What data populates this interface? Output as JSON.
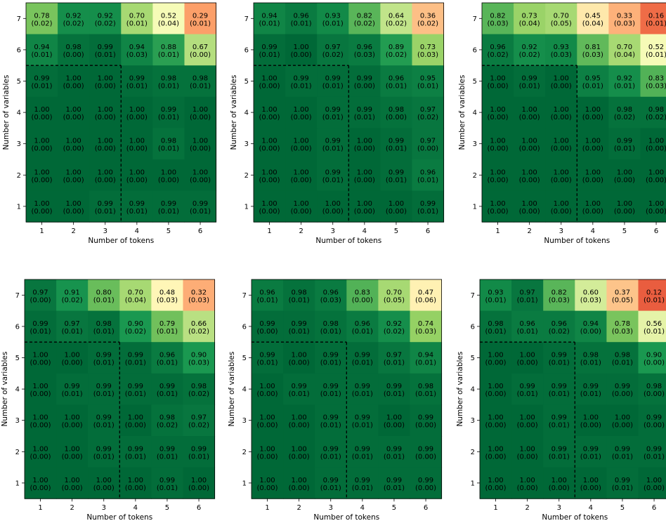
{
  "colors": {
    "low": "#d73027",
    "mid_low": "#fc8d59",
    "mid": "#ffffbf",
    "mid_high": "#91cf60",
    "high": "#1a9850",
    "max": "#006837",
    "divider": "#000000"
  },
  "colormap": "RdYlGn",
  "chart_data": [
    {
      "type": "heatmap",
      "xlabel": "Number of tokens",
      "ylabel": "Number of variables",
      "x_ticks": [
        "1",
        "2",
        "3",
        "4",
        "5",
        "6"
      ],
      "y_ticks": [
        "7",
        "6",
        "5",
        "4",
        "3",
        "2",
        "1"
      ],
      "values": [
        [
          "0.78",
          "0.92",
          "0.92",
          "0.70",
          "0.52",
          "0.29"
        ],
        [
          "0.94",
          "0.98",
          "0.99",
          "0.94",
          "0.88",
          "0.67"
        ],
        [
          "0.99",
          "1.00",
          "1.00",
          "0.99",
          "0.98",
          "0.98"
        ],
        [
          "1.00",
          "1.00",
          "1.00",
          "1.00",
          "0.99",
          "1.00"
        ],
        [
          "1.00",
          "1.00",
          "1.00",
          "1.00",
          "0.98",
          "1.00"
        ],
        [
          "1.00",
          "1.00",
          "1.00",
          "1.00",
          "1.00",
          "1.00"
        ],
        [
          "1.00",
          "1.00",
          "0.99",
          "0.99",
          "0.99",
          "0.99"
        ]
      ],
      "errors": [
        [
          "(0.02)",
          "(0.02)",
          "(0.02)",
          "(0.01)",
          "(0.04)",
          "(0.01)"
        ],
        [
          "(0.01)",
          "(0.00)",
          "(0.01)",
          "(0.03)",
          "(0.01)",
          "(0.00)"
        ],
        [
          "(0.01)",
          "(0.00)",
          "(0.00)",
          "(0.01)",
          "(0.01)",
          "(0.01)"
        ],
        [
          "(0.00)",
          "(0.00)",
          "(0.00)",
          "(0.00)",
          "(0.01)",
          "(0.00)"
        ],
        [
          "(0.00)",
          "(0.00)",
          "(0.00)",
          "(0.00)",
          "(0.01)",
          "(0.00)"
        ],
        [
          "(0.00)",
          "(0.00)",
          "(0.00)",
          "(0.00)",
          "(0.00)",
          "(0.00)"
        ],
        [
          "(0.00)",
          "(0.00)",
          "(0.01)",
          "(0.01)",
          "(0.01)",
          "(0.01)"
        ]
      ]
    },
    {
      "type": "heatmap",
      "xlabel": "Number of tokens",
      "ylabel": "Number of variables",
      "x_ticks": [
        "1",
        "2",
        "3",
        "4",
        "5",
        "6"
      ],
      "y_ticks": [
        "7",
        "6",
        "5",
        "4",
        "3",
        "2",
        "1"
      ],
      "values": [
        [
          "0.94",
          "0.96",
          "0.93",
          "0.82",
          "0.64",
          "0.36"
        ],
        [
          "0.99",
          "1.00",
          "0.97",
          "0.96",
          "0.89",
          "0.73"
        ],
        [
          "1.00",
          "0.99",
          "0.99",
          "0.99",
          "0.96",
          "0.95"
        ],
        [
          "1.00",
          "1.00",
          "0.99",
          "0.99",
          "0.98",
          "0.97"
        ],
        [
          "1.00",
          "1.00",
          "0.99",
          "1.00",
          "0.99",
          "0.97"
        ],
        [
          "1.00",
          "1.00",
          "0.99",
          "1.00",
          "0.99",
          "0.96"
        ],
        [
          "1.00",
          "1.00",
          "1.00",
          "1.00",
          "1.00",
          "0.99"
        ]
      ],
      "errors": [
        [
          "(0.01)",
          "(0.01)",
          "(0.01)",
          "(0.02)",
          "(0.02)",
          "(0.02)"
        ],
        [
          "(0.01)",
          "(0.00)",
          "(0.02)",
          "(0.03)",
          "(0.02)",
          "(0.03)"
        ],
        [
          "(0.00)",
          "(0.01)",
          "(0.01)",
          "(0.00)",
          "(0.01)",
          "(0.01)"
        ],
        [
          "(0.00)",
          "(0.00)",
          "(0.01)",
          "(0.01)",
          "(0.00)",
          "(0.02)"
        ],
        [
          "(0.00)",
          "(0.00)",
          "(0.01)",
          "(0.00)",
          "(0.01)",
          "(0.00)"
        ],
        [
          "(0.00)",
          "(0.00)",
          "(0.01)",
          "(0.00)",
          "(0.01)",
          "(0.01)"
        ],
        [
          "(0.00)",
          "(0.00)",
          "(0.00)",
          "(0.00)",
          "(0.00)",
          "(0.01)"
        ]
      ]
    },
    {
      "type": "heatmap",
      "xlabel": "Number of tokens",
      "ylabel": "Number of variables",
      "x_ticks": [
        "1",
        "2",
        "3",
        "4",
        "5",
        "6"
      ],
      "y_ticks": [
        "7",
        "6",
        "5",
        "4",
        "3",
        "2",
        "1"
      ],
      "values": [
        [
          "0.82",
          "0.73",
          "0.70",
          "0.45",
          "0.33",
          "0.16"
        ],
        [
          "0.96",
          "0.92",
          "0.93",
          "0.81",
          "0.70",
          "0.52"
        ],
        [
          "1.00",
          "0.99",
          "1.00",
          "0.95",
          "0.92",
          "0.83"
        ],
        [
          "1.00",
          "1.00",
          "1.00",
          "1.00",
          "0.98",
          "0.98"
        ],
        [
          "1.00",
          "1.00",
          "1.00",
          "1.00",
          "0.99",
          "1.00"
        ],
        [
          "1.00",
          "1.00",
          "1.00",
          "1.00",
          "1.00",
          "1.00"
        ],
        [
          "1.00",
          "1.00",
          "1.00",
          "1.00",
          "1.00",
          "1.00"
        ]
      ],
      "errors": [
        [
          "(0.03)",
          "(0.04)",
          "(0.05)",
          "(0.04)",
          "(0.03)",
          "(0.01)"
        ],
        [
          "(0.02)",
          "(0.02)",
          "(0.03)",
          "(0.03)",
          "(0.04)",
          "(0.01)"
        ],
        [
          "(0.00)",
          "(0.01)",
          "(0.00)",
          "(0.01)",
          "(0.01)",
          "(0.03)"
        ],
        [
          "(0.00)",
          "(0.00)",
          "(0.00)",
          "(0.00)",
          "(0.02)",
          "(0.02)"
        ],
        [
          "(0.00)",
          "(0.00)",
          "(0.00)",
          "(0.00)",
          "(0.01)",
          "(0.00)"
        ],
        [
          "(0.00)",
          "(0.00)",
          "(0.00)",
          "(0.00)",
          "(0.00)",
          "(0.00)"
        ],
        [
          "(0.00)",
          "(0.00)",
          "(0.00)",
          "(0.00)",
          "(0.00)",
          "(0.00)"
        ]
      ]
    },
    {
      "type": "heatmap",
      "xlabel": "Number of tokens",
      "ylabel": "Number of variables",
      "x_ticks": [
        "1",
        "2",
        "3",
        "4",
        "5",
        "6"
      ],
      "y_ticks": [
        "7",
        "6",
        "5",
        "4",
        "3",
        "2",
        "1"
      ],
      "values": [
        [
          "0.97",
          "0.91",
          "0.80",
          "0.70",
          "0.48",
          "0.32"
        ],
        [
          "0.99",
          "0.97",
          "0.98",
          "0.90",
          "0.79",
          "0.66"
        ],
        [
          "1.00",
          "1.00",
          "0.99",
          "0.99",
          "0.96",
          "0.90"
        ],
        [
          "1.00",
          "0.99",
          "0.99",
          "0.99",
          "0.99",
          "0.98"
        ],
        [
          "1.00",
          "1.00",
          "0.99",
          "1.00",
          "0.98",
          "0.97"
        ],
        [
          "1.00",
          "1.00",
          "0.99",
          "0.99",
          "0.99",
          "0.99"
        ],
        [
          "1.00",
          "1.00",
          "1.00",
          "1.00",
          "0.99",
          "1.00"
        ]
      ],
      "errors": [
        [
          "(0.00)",
          "(0.02)",
          "(0.01)",
          "(0.04)",
          "(0.03)",
          "(0.03)"
        ],
        [
          "(0.01)",
          "(0.01)",
          "(0.01)",
          "(0.02)",
          "(0.01)",
          "(0.02)"
        ],
        [
          "(0.00)",
          "(0.00)",
          "(0.01)",
          "(0.01)",
          "(0.01)",
          "(0.03)"
        ],
        [
          "(0.00)",
          "(0.01)",
          "(0.01)",
          "(0.01)",
          "(0.01)",
          "(0.02)"
        ],
        [
          "(0.00)",
          "(0.00)",
          "(0.01)",
          "(0.00)",
          "(0.02)",
          "(0.02)"
        ],
        [
          "(0.00)",
          "(0.00)",
          "(0.01)",
          "(0.01)",
          "(0.01)",
          "(0.01)"
        ],
        [
          "(0.00)",
          "(0.00)",
          "(0.00)",
          "(0.00)",
          "(0.01)",
          "(0.00)"
        ]
      ]
    },
    {
      "type": "heatmap",
      "xlabel": "Number of tokens",
      "ylabel": "Number of variables",
      "x_ticks": [
        "1",
        "2",
        "3",
        "4",
        "5",
        "6"
      ],
      "y_ticks": [
        "7",
        "6",
        "5",
        "4",
        "3",
        "2",
        "1"
      ],
      "values": [
        [
          "0.96",
          "0.98",
          "0.96",
          "0.83",
          "0.70",
          "0.47"
        ],
        [
          "0.99",
          "0.99",
          "0.98",
          "0.96",
          "0.92",
          "0.74"
        ],
        [
          "0.99",
          "1.00",
          "0.99",
          "0.99",
          "0.97",
          "0.94"
        ],
        [
          "1.00",
          "0.99",
          "0.99",
          "0.99",
          "0.99",
          "0.98"
        ],
        [
          "1.00",
          "1.00",
          "0.99",
          "0.99",
          "1.00",
          "0.99"
        ],
        [
          "1.00",
          "1.00",
          "0.99",
          "0.99",
          "0.99",
          "0.99"
        ],
        [
          "1.00",
          "1.00",
          "0.99",
          "0.99",
          "0.99",
          "0.99"
        ]
      ],
      "errors": [
        [
          "(0.01)",
          "(0.01)",
          "(0.03)",
          "(0.00)",
          "(0.05)",
          "(0.06)"
        ],
        [
          "(0.00)",
          "(0.01)",
          "(0.01)",
          "(0.01)",
          "(0.02)",
          "(0.03)"
        ],
        [
          "(0.01)",
          "(0.00)",
          "(0.01)",
          "(0.01)",
          "(0.01)",
          "(0.01)"
        ],
        [
          "(0.00)",
          "(0.01)",
          "(0.01)",
          "(0.01)",
          "(0.01)",
          "(0.01)"
        ],
        [
          "(0.00)",
          "(0.00)",
          "(0.01)",
          "(0.01)",
          "(0.00)",
          "(0.00)"
        ],
        [
          "(0.00)",
          "(0.00)",
          "(0.01)",
          "(0.01)",
          "(0.01)",
          "(0.00)"
        ],
        [
          "(0.00)",
          "(0.00)",
          "(0.01)",
          "(0.01)",
          "(0.01)",
          "(0.00)"
        ]
      ]
    },
    {
      "type": "heatmap",
      "xlabel": "Number of tokens",
      "ylabel": "Number of variables",
      "x_ticks": [
        "1",
        "2",
        "3",
        "4",
        "5",
        "6"
      ],
      "y_ticks": [
        "7",
        "6",
        "5",
        "4",
        "3",
        "2",
        "1"
      ],
      "values": [
        [
          "0.93",
          "0.97",
          "0.82",
          "0.60",
          "0.37",
          "0.12"
        ],
        [
          "0.98",
          "0.96",
          "0.96",
          "0.94",
          "0.78",
          "0.56"
        ],
        [
          "1.00",
          "1.00",
          "0.99",
          "0.98",
          "0.98",
          "0.90"
        ],
        [
          "1.00",
          "0.99",
          "0.99",
          "0.99",
          "0.99",
          "0.98"
        ],
        [
          "1.00",
          "1.00",
          "0.99",
          "1.00",
          "1.00",
          "0.99"
        ],
        [
          "1.00",
          "1.00",
          "0.99",
          "0.99",
          "0.99",
          "0.99"
        ],
        [
          "1.00",
          "1.00",
          "1.00",
          "1.00",
          "0.99",
          "1.00"
        ]
      ],
      "errors": [
        [
          "(0.01)",
          "(0.01)",
          "(0.03)",
          "(0.03)",
          "(0.05)",
          "(0.01)"
        ],
        [
          "(0.01)",
          "(0.01)",
          "(0.02)",
          "(0.00)",
          "(0.03)",
          "(0.01)"
        ],
        [
          "(0.00)",
          "(0.00)",
          "(0.01)",
          "(0.01)",
          "(0.01)",
          "(0.00)"
        ],
        [
          "(0.00)",
          "(0.01)",
          "(0.01)",
          "(0.01)",
          "(0.00)",
          "(0.00)"
        ],
        [
          "(0.00)",
          "(0.00)",
          "(0.01)",
          "(0.00)",
          "(0.00)",
          "(0.00)"
        ],
        [
          "(0.00)",
          "(0.00)",
          "(0.01)",
          "(0.01)",
          "(0.01)",
          "(0.01)"
        ],
        [
          "(0.00)",
          "(0.00)",
          "(0.00)",
          "(0.00)",
          "(0.01)",
          "(0.00)"
        ]
      ]
    }
  ]
}
